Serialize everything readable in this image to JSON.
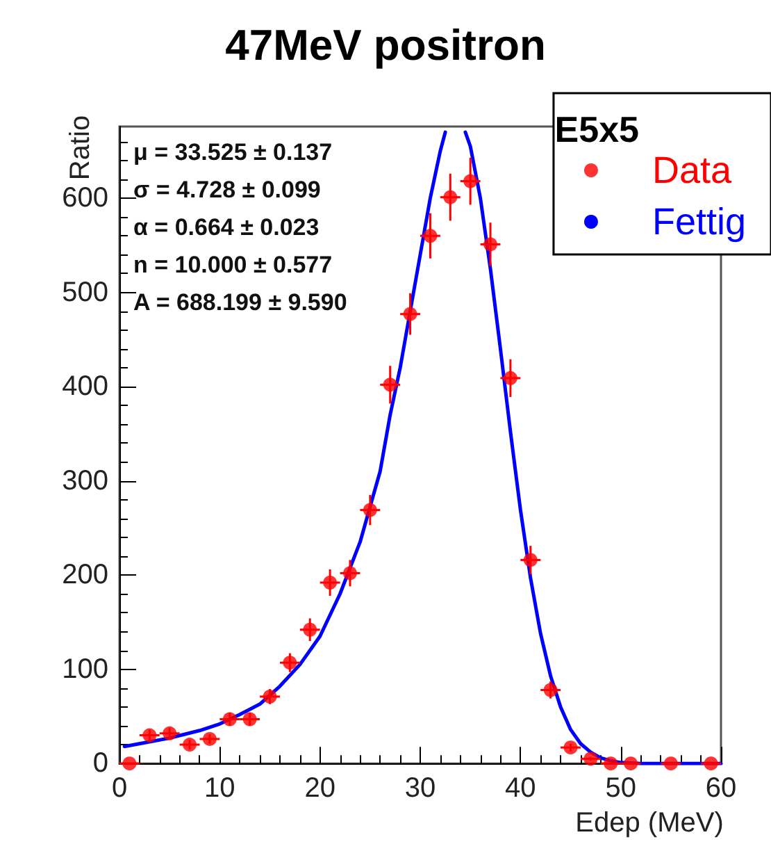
{
  "chart_data": {
    "type": "scatter",
    "title": "47MeV positron",
    "xlabel": "Edep (MeV)",
    "ylabel": "Ratio",
    "legend_title": "E5x5",
    "legend": "top right",
    "grid": false,
    "xlim": [
      0,
      60
    ],
    "xticks": [
      0,
      10,
      20,
      30,
      40,
      50,
      60
    ],
    "ylim": [
      0,
      676
    ],
    "yticks": [
      0,
      100,
      200,
      300,
      400,
      500,
      600
    ],
    "annotations": [
      "μ = 33.525 ± 0.137",
      "σ = 4.728 ± 0.099",
      "α = 0.664 ± 0.023",
      "n = 10.000 ± 0.577",
      "A = 688.199 ± 9.590"
    ],
    "series": [
      {
        "name": "Data",
        "color": "#ff0000",
        "marker": "circle",
        "x": [
          1,
          3,
          5,
          7,
          9,
          11,
          13,
          15,
          17,
          19,
          21,
          23,
          25,
          27,
          29,
          31,
          33,
          35,
          37,
          39,
          41,
          43,
          45,
          47,
          49,
          51,
          55,
          59
        ],
        "values": [
          0,
          30,
          32,
          20,
          26,
          47,
          47,
          71,
          107,
          142,
          192,
          202,
          269,
          402,
          477,
          560,
          601,
          618,
          551,
          409,
          216,
          78,
          17,
          5,
          0,
          0,
          0,
          0
        ],
        "errors": [
          0,
          6,
          6,
          5,
          5,
          7,
          7,
          8,
          10,
          12,
          14,
          14,
          16,
          20,
          22,
          24,
          25,
          25,
          23,
          20,
          15,
          9,
          4,
          2,
          0,
          0,
          0,
          0
        ],
        "xerrors": [
          1,
          1,
          1,
          1,
          1,
          1,
          1,
          1,
          1,
          1,
          1,
          1,
          1,
          1,
          1,
          1,
          1,
          1,
          1,
          1,
          1,
          1,
          1,
          1,
          1,
          1,
          1,
          1
        ]
      },
      {
        "name": "Fettig",
        "type": "line",
        "color": "#0000ff",
        "marker": "none",
        "line_style": "solid",
        "x": [
          0.5,
          3,
          5,
          8,
          10,
          12,
          14,
          16,
          18,
          20,
          22,
          24,
          26,
          27,
          28,
          30,
          31,
          32,
          32.5,
          33.5,
          34.5,
          35,
          36,
          37,
          38,
          39,
          40,
          41,
          42,
          43,
          44,
          45,
          46,
          47,
          48,
          49,
          50,
          52,
          60
        ],
        "values": [
          18,
          23,
          27,
          35,
          42,
          52,
          63,
          82,
          105,
          135,
          180,
          235,
          310,
          370,
          420,
          540,
          600,
          650,
          670,
          null,
          670,
          655,
          600,
          525,
          440,
          352,
          269,
          197,
          138,
          93,
          60,
          36,
          21,
          12,
          6,
          3,
          1,
          0,
          0
        ]
      }
    ]
  }
}
